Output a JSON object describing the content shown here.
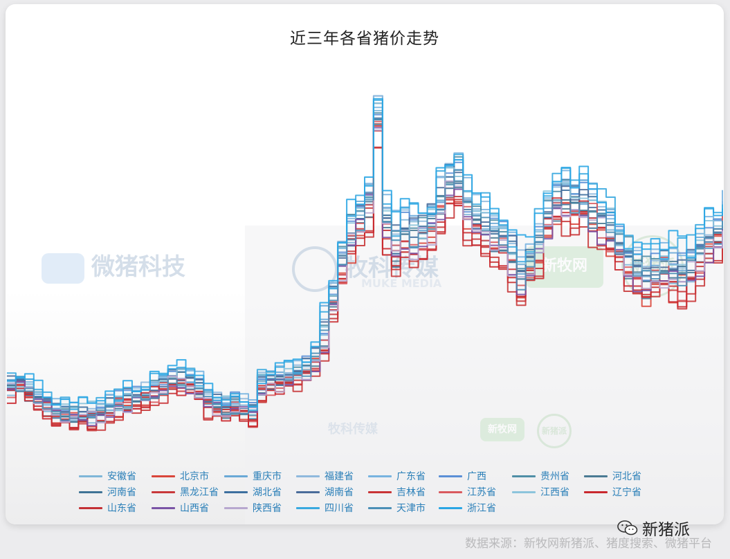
{
  "chart_data": {
    "type": "line",
    "title": "近三年各省猪价走势",
    "xlabel": "",
    "ylabel": "",
    "x": [
      0,
      1,
      2,
      3,
      4,
      5,
      6,
      7,
      8,
      9,
      10,
      11,
      12,
      13,
      14,
      15,
      16,
      17,
      18,
      19,
      20,
      21,
      22,
      23,
      24,
      25,
      26,
      27,
      28,
      29,
      30,
      31,
      32,
      33,
      34,
      35,
      36,
      37,
      38,
      39,
      40,
      41,
      42,
      43,
      44,
      45,
      46,
      47,
      48,
      49,
      50,
      51,
      52,
      53,
      54,
      55,
      56,
      57,
      58,
      59,
      60,
      61,
      62,
      63,
      64,
      65,
      66,
      67,
      68,
      69,
      70,
      71,
      72,
      73,
      74,
      75,
      76,
      77,
      78,
      79,
      80
    ],
    "base_level": [
      16.5,
      16.8,
      16.2,
      15.4,
      14.8,
      14.4,
      14.2,
      14.1,
      13.9,
      14.0,
      14.3,
      14.6,
      15.0,
      15.3,
      15.5,
      15.8,
      16.2,
      16.6,
      17.0,
      17.2,
      17.0,
      16.4,
      15.2,
      14.8,
      14.6,
      14.9,
      14.5,
      14.2,
      16.5,
      16.8,
      17.2,
      17.3,
      17.6,
      18.2,
      19.0,
      21.0,
      24.0,
      27.5,
      30.0,
      31.5,
      33.2,
      40.5,
      31.0,
      29.0,
      30.5,
      29.8,
      30.2,
      31.0,
      32.8,
      34.5,
      34.8,
      32.0,
      31.0,
      30.5,
      30.0,
      29.5,
      28.0,
      26.0,
      27.5,
      29.0,
      31.5,
      33.0,
      33.5,
      33.0,
      32.8,
      32.2,
      31.5,
      30.5,
      29.0,
      27.5,
      26.8,
      26.0,
      26.5,
      27.0,
      26.5,
      26.2,
      27.0,
      28.5,
      29.5,
      30.0,
      31.0
    ],
    "ylim": [
      10,
      45
    ],
    "series": [
      {
        "name": "安徽省",
        "color": "#7fb6d8",
        "offset": 0.3
      },
      {
        "name": "北京市",
        "color": "#d9463b",
        "offset": -0.8
      },
      {
        "name": "重庆市",
        "color": "#6aa9d6",
        "offset": 0.6
      },
      {
        "name": "福建省",
        "color": "#8fb9dd",
        "offset": 1.2
      },
      {
        "name": "广东省",
        "color": "#77b3e0",
        "offset": 1.5
      },
      {
        "name": "广西",
        "color": "#5b8fd6",
        "offset": 0.9
      },
      {
        "name": "贵州省",
        "color": "#4f8ea6",
        "offset": 0.8
      },
      {
        "name": "河北省",
        "color": "#4a7a93",
        "offset": -0.2
      },
      {
        "name": "河南省",
        "color": "#3f7395",
        "offset": -0.1
      },
      {
        "name": "黑龙江省",
        "color": "#c8383a",
        "offset": -1.4
      },
      {
        "name": "湖北省",
        "color": "#3d6f9f",
        "offset": 0.4
      },
      {
        "name": "湖南省",
        "color": "#4a6c9a",
        "offset": 0.7
      },
      {
        "name": "吉林省",
        "color": "#c93335",
        "offset": -1.2
      },
      {
        "name": "江苏省",
        "color": "#d95a5e",
        "offset": -0.3
      },
      {
        "name": "江西省",
        "color": "#8cc4dc",
        "offset": 1.0
      },
      {
        "name": "辽宁省",
        "color": "#c9282e",
        "offset": -1.0
      },
      {
        "name": "山东省",
        "color": "#c43035",
        "offset": -0.6
      },
      {
        "name": "山西省",
        "color": "#7a53a6",
        "offset": -0.5
      },
      {
        "name": "陕西省",
        "color": "#b7a7cf",
        "offset": -0.4
      },
      {
        "name": "四川省",
        "color": "#39a9df",
        "offset": 1.8
      },
      {
        "name": "天津市",
        "color": "#4b8fb6",
        "offset": 0.1
      },
      {
        "name": "浙江省",
        "color": "#2aa6e4",
        "offset": 2.0
      }
    ]
  },
  "watermarks": {
    "wm1": "微猪科技",
    "wm2": "牧科传媒",
    "wm2_sub": "MUKE MEDIA",
    "wm3": "新牧网",
    "wm4": "新猪派",
    "wm5": "牧科传媒",
    "wm6": "新牧网",
    "wm7": "新猪派"
  },
  "footer": {
    "brand": "新猪派",
    "source": "数据来源：新牧网新猪派、猪度搜索、微猪平台"
  },
  "icons": {
    "wechat": "wechat-icon"
  }
}
